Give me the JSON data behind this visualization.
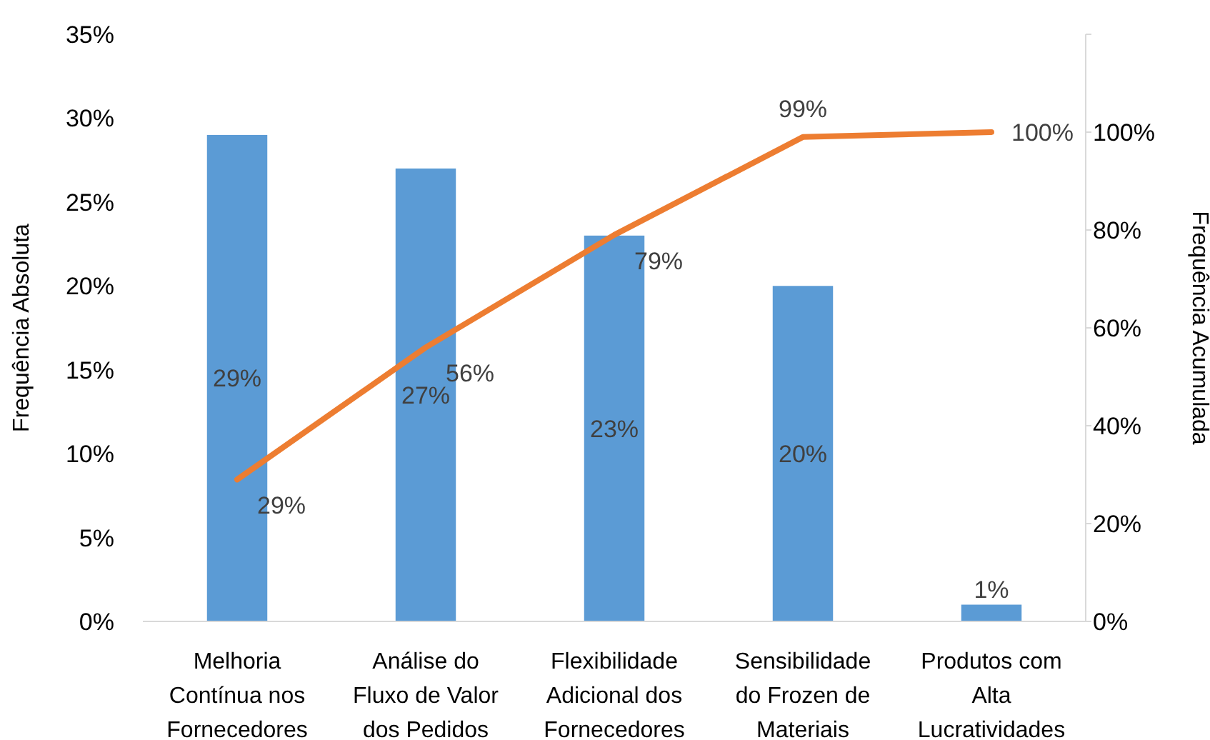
{
  "chart_data": {
    "type": "bar",
    "ylabel": "Frequência Absoluta",
    "y2label": "Frequência Acumulada",
    "categories": [
      "Melhoria Contínua nos Fornecedores",
      "Análise do Fluxo de Valor dos Pedidos",
      "Flexibilidade Adicional dos Fornecedores",
      "Sensibilidade do Frozen de Materiais",
      "Produtos com Alta Lucratividades"
    ],
    "series": [
      {
        "color": "#5b9bd5",
        "values": [
          29,
          27,
          23,
          20,
          1
        ],
        "value_labels": [
          "29%",
          "27%",
          "23%",
          "20%",
          "1%"
        ]
      },
      {
        "type": "line",
        "axis": "y2",
        "color": "#ed7d31",
        "values": [
          29,
          56,
          79,
          99,
          100
        ],
        "value_labels": [
          "29%",
          "56%",
          "79%",
          "99%",
          "100%"
        ]
      }
    ],
    "ylim": [
      0,
      35
    ],
    "yticks": [
      {
        "value": 0,
        "label": "0%"
      },
      {
        "value": 5,
        "label": "5%"
      },
      {
        "value": 10,
        "label": "10%"
      },
      {
        "value": 15,
        "label": "15%"
      },
      {
        "value": 20,
        "label": "20%"
      },
      {
        "value": 25,
        "label": "25%"
      },
      {
        "value": 30,
        "label": "30%"
      },
      {
        "value": 35,
        "label": "35%"
      }
    ],
    "y2lim": [
      0,
      120
    ],
    "y2ticks": [
      {
        "value": 0,
        "label": "0%"
      },
      {
        "value": 20,
        "label": "20%"
      },
      {
        "value": 40,
        "label": "40%"
      },
      {
        "value": 60,
        "label": "60%"
      },
      {
        "value": 80,
        "label": "80%"
      },
      {
        "value": 100,
        "label": "100%"
      },
      {
        "value": 120,
        "label": null
      }
    ],
    "grid": false
  }
}
